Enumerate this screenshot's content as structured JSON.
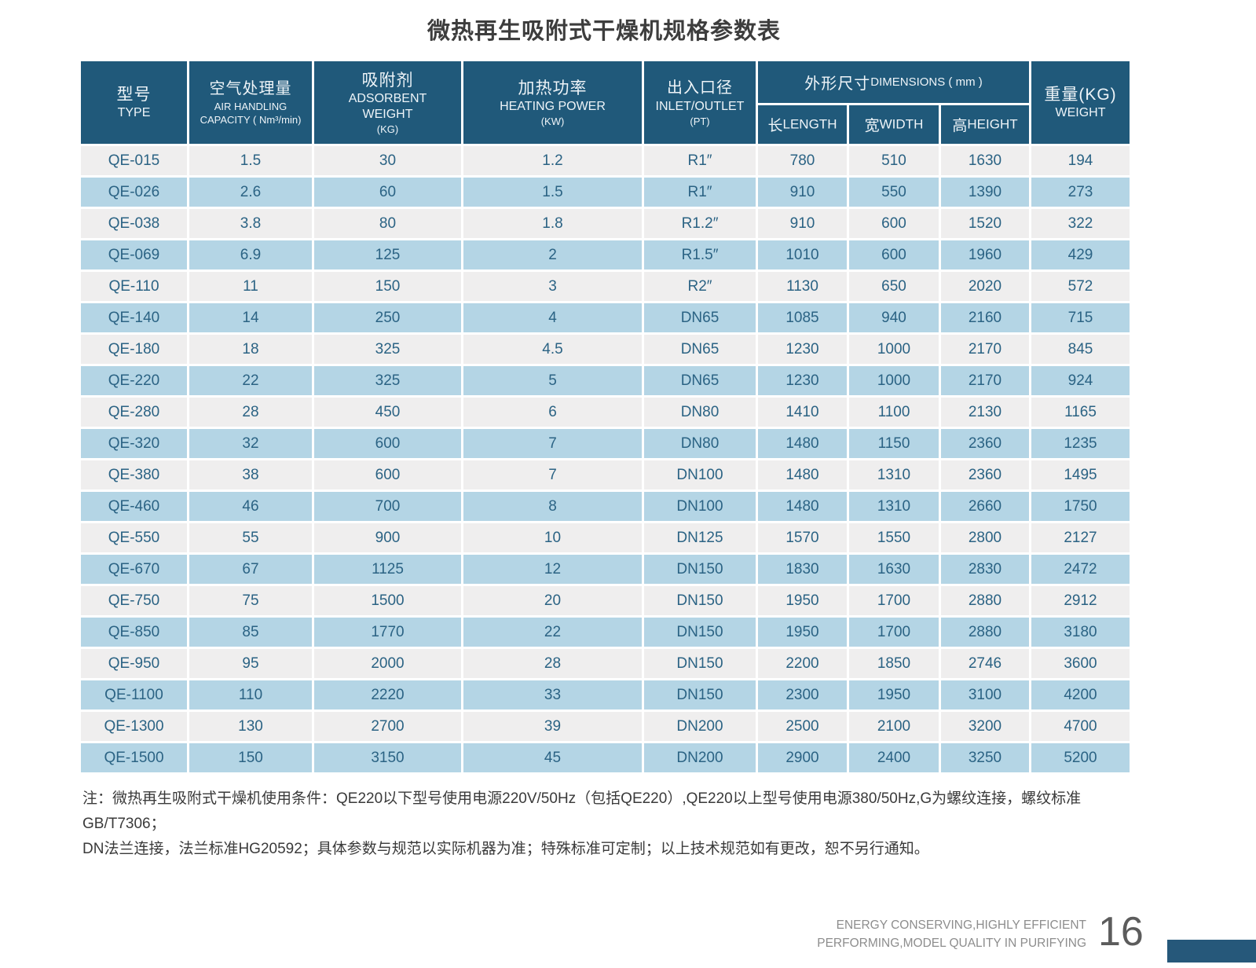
{
  "page": {
    "title": "微热再生吸附式干燥机规格参数表"
  },
  "table": {
    "header": {
      "type": {
        "zh": "型号",
        "en": "TYPE"
      },
      "capacity": {
        "zh": "空气处理量",
        "en": "AIR HANDLING",
        "unit": "CAPACITY ( Nm³/min)"
      },
      "adsorbent": {
        "zh": "吸附剂",
        "en": "ADSORBENT",
        "en2": "WEIGHT",
        "unit": "(KG)"
      },
      "heating": {
        "zh": "加热功率",
        "en": "HEATING POWER",
        "unit": "(KW)"
      },
      "inlet": {
        "zh": "出入口径",
        "en": "INLET/OUTLET",
        "unit": "(PT)"
      },
      "dimensions": {
        "zh": "外形尺寸",
        "en": "DIMENSIONS ( mm )",
        "length_zh": "长",
        "length_en": "LENGTH",
        "width_zh": "宽",
        "width_en": "WIDTH",
        "height_zh": "高",
        "height_en": "HEIGHT"
      },
      "weight": {
        "zh": "重量(KG)",
        "en": "WEIGHT"
      }
    },
    "rows": [
      [
        "QE-015",
        "1.5",
        "30",
        "1.2",
        "R1″",
        "780",
        "510",
        "1630",
        "194"
      ],
      [
        "QE-026",
        "2.6",
        "60",
        "1.5",
        "R1″",
        "910",
        "550",
        "1390",
        "273"
      ],
      [
        "QE-038",
        "3.8",
        "80",
        "1.8",
        "R1.2″",
        "910",
        "600",
        "1520",
        "322"
      ],
      [
        "QE-069",
        "6.9",
        "125",
        "2",
        "R1.5″",
        "1010",
        "600",
        "1960",
        "429"
      ],
      [
        "QE-110",
        "11",
        "150",
        "3",
        "R2″",
        "1130",
        "650",
        "2020",
        "572"
      ],
      [
        "QE-140",
        "14",
        "250",
        "4",
        "DN65",
        "1085",
        "940",
        "2160",
        "715"
      ],
      [
        "QE-180",
        "18",
        "325",
        "4.5",
        "DN65",
        "1230",
        "1000",
        "2170",
        "845"
      ],
      [
        "QE-220",
        "22",
        "325",
        "5",
        "DN65",
        "1230",
        "1000",
        "2170",
        "924"
      ],
      [
        "QE-280",
        "28",
        "450",
        "6",
        "DN80",
        "1410",
        "1100",
        "2130",
        "1165"
      ],
      [
        "QE-320",
        "32",
        "600",
        "7",
        "DN80",
        "1480",
        "1150",
        "2360",
        "1235"
      ],
      [
        "QE-380",
        "38",
        "600",
        "7",
        "DN100",
        "1480",
        "1310",
        "2360",
        "1495"
      ],
      [
        "QE-460",
        "46",
        "700",
        "8",
        "DN100",
        "1480",
        "1310",
        "2660",
        "1750"
      ],
      [
        "QE-550",
        "55",
        "900",
        "10",
        "DN125",
        "1570",
        "1550",
        "2800",
        "2127"
      ],
      [
        "QE-670",
        "67",
        "1125",
        "12",
        "DN150",
        "1830",
        "1630",
        "2830",
        "2472"
      ],
      [
        "QE-750",
        "75",
        "1500",
        "20",
        "DN150",
        "1950",
        "1700",
        "2880",
        "2912"
      ],
      [
        "QE-850",
        "85",
        "1770",
        "22",
        "DN150",
        "1950",
        "1700",
        "2880",
        "3180"
      ],
      [
        "QE-950",
        "95",
        "2000",
        "28",
        "DN150",
        "2200",
        "1850",
        "2746",
        "3600"
      ],
      [
        "QE-1100",
        "110",
        "2220",
        "33",
        "DN150",
        "2300",
        "1950",
        "3100",
        "4200"
      ],
      [
        "QE-1300",
        "130",
        "2700",
        "39",
        "DN200",
        "2500",
        "2100",
        "3200",
        "4700"
      ],
      [
        "QE-1500",
        "150",
        "3150",
        "45",
        "DN200",
        "2900",
        "2400",
        "3250",
        "5200"
      ]
    ]
  },
  "note": {
    "line1": "注：微热再生吸附式干燥机使用条件：QE220以下型号使用电源220V/50Hz（包括QE220）,QE220以上型号使用电源380/50Hz,G为螺纹连接，螺纹标准GB/T7306；",
    "line2": "DN法兰连接，法兰标准HG20592；具体参数与规范以实际机器为准；特殊标准可定制；以上技术规范如有更改，恕不另行通知。"
  },
  "footer": {
    "slogan_line1": "ENERGY CONSERVING,HIGHLY EFFICIENT",
    "slogan_line2": "PERFORMING,MODEL QUALITY IN PURIFYING",
    "page_number": "16"
  },
  "colors": {
    "header_bg": "#20597a",
    "row_light": "#efeeee",
    "row_blue": "#b4d5e5",
    "cell_text": "#2b6384",
    "accent_bar": "#26587a"
  }
}
